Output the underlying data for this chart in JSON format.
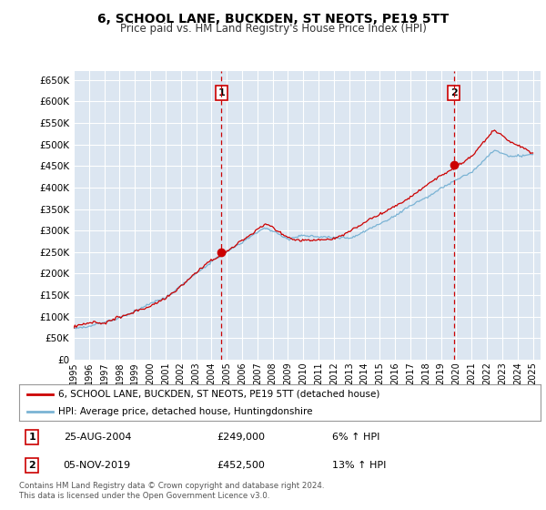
{
  "title": "6, SCHOOL LANE, BUCKDEN, ST NEOTS, PE19 5TT",
  "subtitle": "Price paid vs. HM Land Registry's House Price Index (HPI)",
  "title_fontsize": 10,
  "subtitle_fontsize": 8.5,
  "ylim": [
    0,
    670000
  ],
  "yticks": [
    0,
    50000,
    100000,
    150000,
    200000,
    250000,
    300000,
    350000,
    400000,
    450000,
    500000,
    550000,
    600000,
    650000
  ],
  "background_color": "#ffffff",
  "plot_bg_color": "#dce6f1",
  "grid_color": "#ffffff",
  "sale1_year": 2004.65,
  "sale1_price": 249000,
  "sale2_year": 2019.84,
  "sale2_price": 452500,
  "hpi_line_color": "#7ab3d4",
  "price_line_color": "#cc0000",
  "sale_marker_color": "#cc0000",
  "vline_color": "#cc0000",
  "legend_label_red": "6, SCHOOL LANE, BUCKDEN, ST NEOTS, PE19 5TT (detached house)",
  "legend_label_blue": "HPI: Average price, detached house, Huntingdonshire",
  "annotation1_num": "1",
  "annotation1_date": "25-AUG-2004",
  "annotation1_price": "£249,000",
  "annotation1_hpi": "6% ↑ HPI",
  "annotation2_num": "2",
  "annotation2_date": "05-NOV-2019",
  "annotation2_price": "£452,500",
  "annotation2_hpi": "13% ↑ HPI",
  "footer": "Contains HM Land Registry data © Crown copyright and database right 2024.\nThis data is licensed under the Open Government Licence v3.0.",
  "xmin": 1995.0,
  "xmax": 2025.5,
  "xtick_years": [
    1995,
    1996,
    1997,
    1998,
    1999,
    2000,
    2001,
    2002,
    2003,
    2004,
    2005,
    2006,
    2007,
    2008,
    2009,
    2010,
    2011,
    2012,
    2013,
    2014,
    2015,
    2016,
    2017,
    2018,
    2019,
    2020,
    2021,
    2022,
    2023,
    2024,
    2025
  ]
}
